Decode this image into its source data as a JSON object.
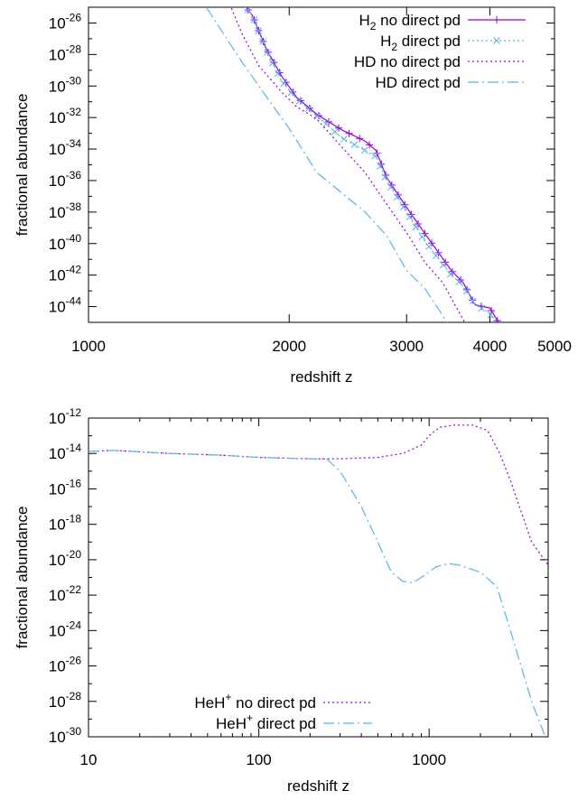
{
  "chart_data": [
    {
      "type": "line",
      "xscale": "log",
      "yscale": "log",
      "xlabel": "redshift z",
      "ylabel": "fractional abundance",
      "xlim": [
        1000,
        5000
      ],
      "ylim": [
        1e-45,
        1e-25
      ],
      "x_ticks": [
        1000,
        2000,
        3000,
        4000,
        5000
      ],
      "x_tick_labels": [
        "1000",
        "2000",
        "3000",
        "4000",
        "5000"
      ],
      "y_tick_exponents": [
        -26,
        -28,
        -30,
        -32,
        -34,
        -36,
        -38,
        -40,
        -42,
        -44
      ],
      "grid": false,
      "legend_position": "top-right",
      "series": [
        {
          "name": "H2 no direct pd",
          "name_base": "H",
          "name_sub": "2",
          "name_sup": "",
          "name_rest": " no direct pd",
          "color": "#9400d3",
          "dash": "solid",
          "marker": "plus",
          "points": [
            [
              1650,
              1e-24
            ],
            [
              1760,
              3.2e-26
            ],
            [
              1850,
              2e-28
            ],
            [
              1950,
              4e-30
            ],
            [
              2050,
              2e-31
            ],
            [
              2200,
              1.6e-32
            ],
            [
              2400,
              1.6e-33
            ],
            [
              2600,
              3.2e-34
            ],
            [
              2700,
              8e-35
            ],
            [
              2800,
              1.6e-36
            ],
            [
              3000,
              2e-38
            ],
            [
              3200,
              4e-40
            ],
            [
              3500,
              2e-42
            ],
            [
              3650,
              3.2e-43
            ],
            [
              3800,
              1.3e-44
            ],
            [
              4000,
              8e-45
            ],
            [
              4150,
              6e-46
            ]
          ]
        },
        {
          "name": "H2 direct pd",
          "name_base": "H",
          "name_sub": "2",
          "name_sup": "",
          "name_rest": " direct pd",
          "color": "#56b4e9",
          "dash": "dotted",
          "marker": "cross",
          "points": [
            [
              1650,
              1e-24
            ],
            [
              1760,
              3.2e-26
            ],
            [
              1850,
              1.6e-28
            ],
            [
              1950,
              2e-30
            ],
            [
              2050,
              1.6e-31
            ],
            [
              2200,
              1.3e-32
            ],
            [
              2400,
              5e-34
            ],
            [
              2600,
              8e-35
            ],
            [
              2700,
              3.2e-35
            ],
            [
              2800,
              1e-36
            ],
            [
              3000,
              1e-38
            ],
            [
              3200,
              1.3e-40
            ],
            [
              3500,
              1e-42
            ],
            [
              3650,
              2e-43
            ],
            [
              3800,
              1.3e-44
            ],
            [
              4000,
              4e-45
            ],
            [
              4100,
              4e-46
            ]
          ]
        },
        {
          "name": "HD no direct pd",
          "name_base": "HD",
          "name_sub": "",
          "name_sup": "",
          "name_rest": " no direct pd",
          "color": "#9400d3",
          "dash": "dotted",
          "marker": "none",
          "points": [
            [
              1600,
              1e-24
            ],
            [
              1700,
              2e-27
            ],
            [
              1800,
              2e-29
            ],
            [
              1950,
              4e-31
            ],
            [
              2050,
              5e-32
            ],
            [
              2200,
              8e-33
            ],
            [
              2400,
              1.3e-34
            ],
            [
              2600,
              3.2e-36
            ],
            [
              2800,
              3.2e-38
            ],
            [
              3000,
              5e-40
            ],
            [
              3200,
              6e-42
            ],
            [
              3400,
              3.2e-43
            ],
            [
              3600,
              4e-45
            ],
            [
              3700,
              5e-46
            ]
          ]
        },
        {
          "name": "HD direct pd",
          "name_base": "HD",
          "name_sub": "",
          "name_sup": "",
          "name_rest": " direct pd",
          "color": "#56b4e9",
          "dash": "dashdot",
          "marker": "none",
          "points": [
            [
              1450,
              1e-24
            ],
            [
              1550,
              1.3e-26
            ],
            [
              1700,
              3.2e-29
            ],
            [
              1850,
              2e-31
            ],
            [
              2000,
              2e-33
            ],
            [
              2200,
              3.2e-36
            ],
            [
              2400,
              1.6e-37
            ],
            [
              2600,
              1e-38
            ],
            [
              2800,
              3.2e-40
            ],
            [
              3000,
              2e-42
            ],
            [
              3200,
              1.3e-43
            ],
            [
              3500,
              4e-46
            ]
          ]
        }
      ]
    },
    {
      "type": "line",
      "xscale": "log",
      "yscale": "log",
      "xlabel": "redshift z",
      "ylabel": "fractional abundance",
      "xlim": [
        10,
        5000
      ],
      "ylim": [
        1e-30,
        1e-12
      ],
      "x_ticks": [
        10,
        100,
        1000
      ],
      "x_tick_labels": [
        "10",
        "100",
        "1000"
      ],
      "y_tick_exponents": [
        -12,
        -14,
        -16,
        -18,
        -20,
        -22,
        -24,
        -26,
        -28,
        -30
      ],
      "grid": false,
      "legend_position": "bottom-left",
      "series": [
        {
          "name": "HeH+ no direct pd",
          "name_base": "HeH",
          "name_sub": "",
          "name_sup": "+",
          "name_rest": " no direct pd",
          "color": "#9400d3",
          "dash": "dotted",
          "marker": "none",
          "points": [
            [
              10,
              1.3e-14
            ],
            [
              14,
              1.5e-14
            ],
            [
              30,
              1e-14
            ],
            [
              60,
              8e-15
            ],
            [
              100,
              6e-15
            ],
            [
              200,
              5e-15
            ],
            [
              300,
              5e-15
            ],
            [
              500,
              6e-15
            ],
            [
              700,
              1e-14
            ],
            [
              900,
              3e-14
            ],
            [
              1000,
              1e-13
            ],
            [
              1150,
              3e-13
            ],
            [
              1400,
              4e-13
            ],
            [
              1800,
              4e-13
            ],
            [
              2200,
              2e-13
            ],
            [
              2600,
              1e-14
            ],
            [
              3000,
              3e-16
            ],
            [
              4000,
              1e-19
            ],
            [
              5000,
              5e-21
            ]
          ]
        },
        {
          "name": "HeH+ direct pd",
          "name_base": "HeH",
          "name_sub": "",
          "name_sup": "+",
          "name_rest": " direct pd",
          "color": "#56b4e9",
          "dash": "dashdot",
          "marker": "none",
          "points": [
            [
              10,
              1.3e-14
            ],
            [
              14,
              1.5e-14
            ],
            [
              30,
              1e-14
            ],
            [
              60,
              8e-15
            ],
            [
              100,
              6e-15
            ],
            [
              200,
              5e-15
            ],
            [
              250,
              5e-15
            ],
            [
              300,
              1e-15
            ],
            [
              400,
              1e-17
            ],
            [
              500,
              1e-19
            ],
            [
              600,
              2e-21
            ],
            [
              700,
              6e-22
            ],
            [
              800,
              5e-22
            ],
            [
              900,
              1e-21
            ],
            [
              1100,
              4e-21
            ],
            [
              1300,
              6e-21
            ],
            [
              1500,
              5e-21
            ],
            [
              2000,
              2e-21
            ],
            [
              2500,
              3e-22
            ],
            [
              3000,
              1e-24
            ],
            [
              4000,
              1e-28
            ],
            [
              4800,
              1e-30
            ]
          ]
        }
      ]
    }
  ]
}
